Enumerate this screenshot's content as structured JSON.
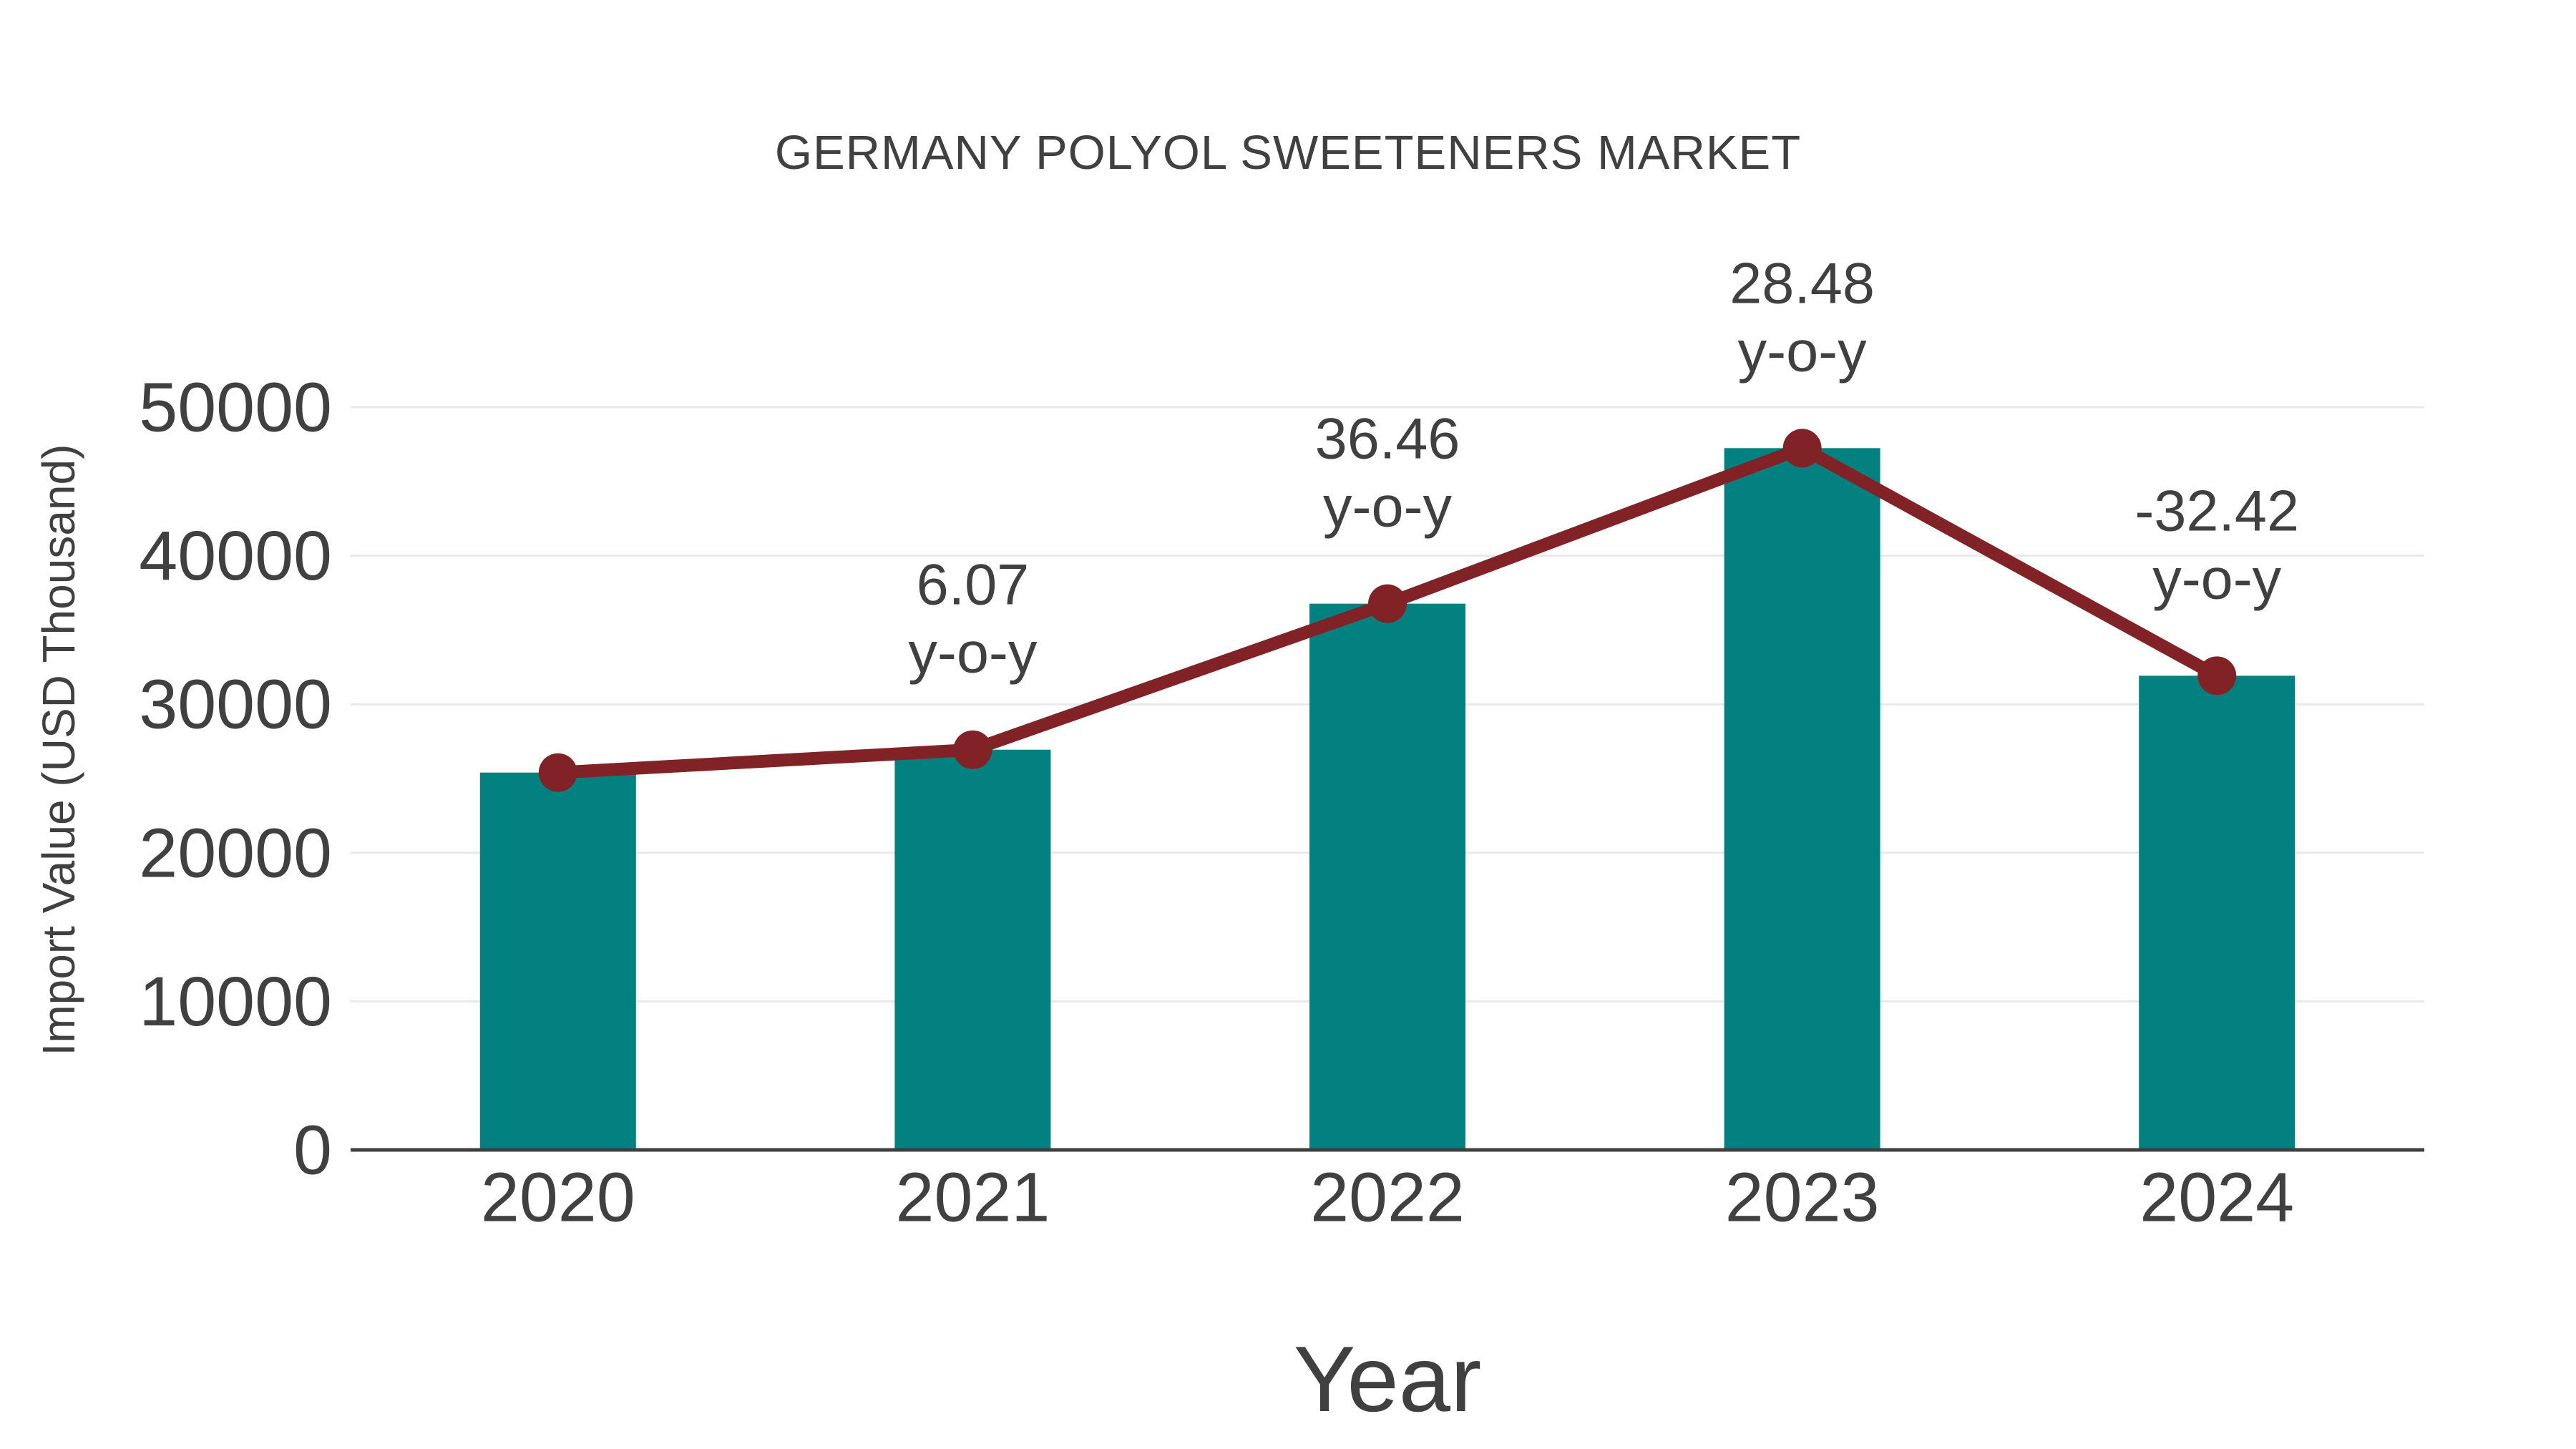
{
  "title": "GERMANY POLYOL SWEETENERS MARKET",
  "chart_data": {
    "type": "bar",
    "title": "GERMANY POLYOL SWEETENERS MARKET",
    "xlabel": "Year",
    "ylabel": "Import Value (USD Thousand)",
    "categories": [
      "2020",
      "2021",
      "2022",
      "2023",
      "2024"
    ],
    "series": [
      {
        "name": "Import Value (USD Thousand)",
        "type": "bar",
        "values": [
          25400,
          26940,
          36770,
          47240,
          31920
        ]
      },
      {
        "name": "y-o-y growth",
        "type": "line",
        "values": [
          25400,
          26940,
          36770,
          47240,
          31920
        ],
        "point_labels": [
          null,
          "6.07",
          "36.46",
          "28.48",
          "-32.42"
        ],
        "point_label_suffix": "y-o-y"
      }
    ],
    "ylim": [
      0,
      50000
    ],
    "yticks": [
      0,
      10000,
      20000,
      30000,
      40000,
      50000
    ],
    "grid": "horizontal-major",
    "legend": "none"
  },
  "colors": {
    "bar": "#038180",
    "line": "#812226",
    "marker": "#812226",
    "text": "#404040",
    "gridline": "#e8e8ea",
    "axis": "#3f3f3f",
    "background": "#ffffff"
  }
}
